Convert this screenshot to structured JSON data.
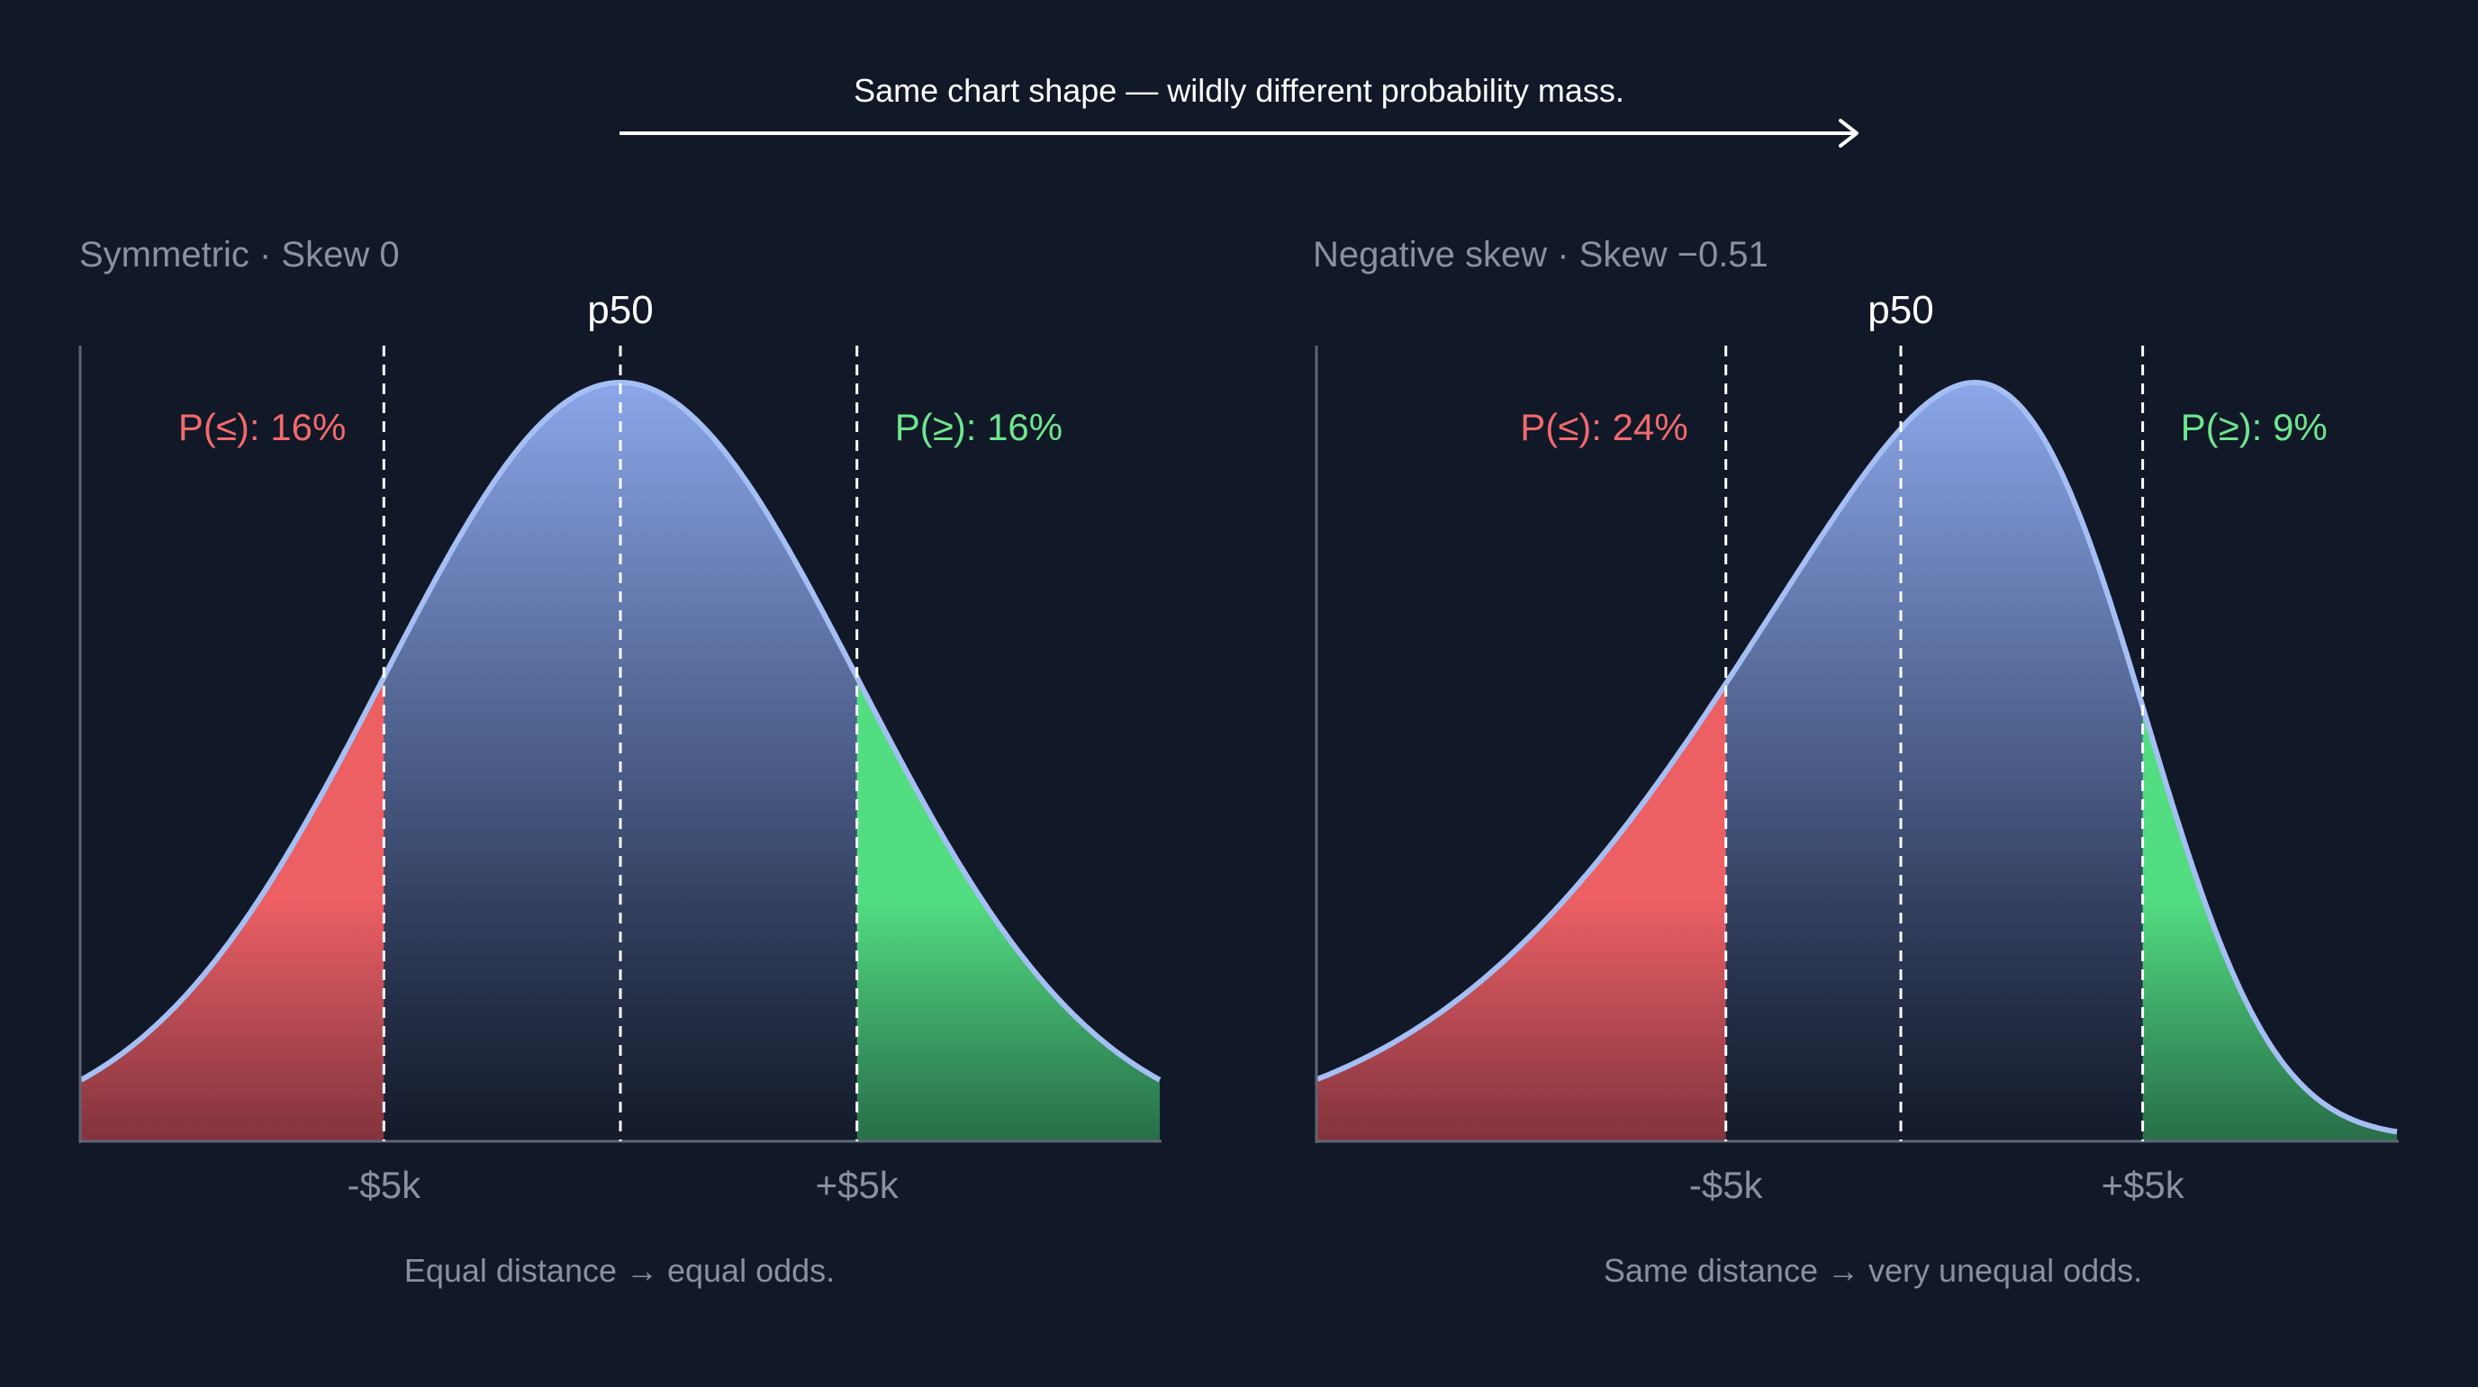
{
  "header": {
    "caption": "Same chart shape — wildly different probability mass."
  },
  "colors": {
    "background": "#111827",
    "curve": "#a5bff5",
    "fill_top": "#8ba7ea",
    "fill_bottom": "#141b2b",
    "left_tail": "#ec5f63",
    "right_tail": "#4ed07a",
    "left_label": "#f06a6d",
    "right_label": "#6ee58e",
    "muted_text": "#8a909c",
    "axis": "#5d6574",
    "marker": "#ffffff"
  },
  "chart_data": [
    {
      "type": "area",
      "title": "Symmetric · Skew 0",
      "skew": 0,
      "median_label": "p50",
      "x_ticks": [
        "-$5k",
        "+$5k"
      ],
      "x_tick_values": [
        -5000,
        5000
      ],
      "x_range": [
        -11400,
        11400
      ],
      "mode": 0,
      "left_tail": {
        "label": "P(≤): 16%",
        "probability": 0.16,
        "threshold": -5000
      },
      "right_tail": {
        "label": "P(≥): 16%",
        "probability": 0.16,
        "threshold": 5000
      },
      "note": "Equal distance → equal odds.",
      "grid": false
    },
    {
      "type": "area",
      "title": "Negative skew · Skew −0.51",
      "skew": -0.51,
      "median_label": "p50",
      "x_ticks": [
        "-$5k",
        "+$5k"
      ],
      "x_tick_values": [
        -5000,
        5000
      ],
      "x_range": [
        -14800,
        11100
      ],
      "mode": 1000,
      "left_tail": {
        "label": "P(≤): 24%",
        "probability": 0.24,
        "threshold": -5000
      },
      "right_tail": {
        "label": "P(≥): 9%",
        "probability": 0.09,
        "threshold": 5000
      },
      "note": "Same distance → very unequal odds.",
      "grid": false
    }
  ]
}
